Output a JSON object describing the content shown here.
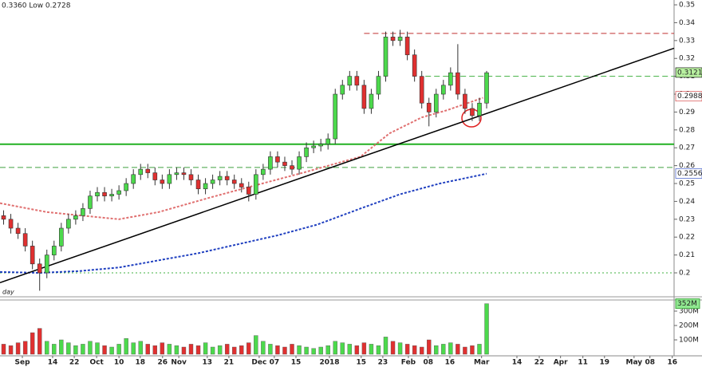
{
  "chart_data": {
    "type": "candlestick",
    "header": "0.3360 Low 0.2728",
    "period_label": "day",
    "x": [
      1,
      3,
      5,
      7,
      9,
      11,
      13,
      15,
      17,
      19,
      21,
      23,
      25,
      27,
      29,
      31,
      33,
      35,
      37,
      39,
      41,
      43,
      45,
      47,
      49,
      51,
      53,
      55,
      57,
      59,
      61,
      63,
      65,
      67,
      69,
      71,
      73,
      75,
      77,
      79,
      81,
      83,
      85,
      87,
      89,
      91,
      93,
      95,
      97,
      99,
      101,
      103,
      105,
      107,
      109,
      111,
      113,
      115,
      117,
      119,
      121,
      123,
      125,
      127,
      129,
      131,
      133,
      135
    ],
    "open": [
      0.232,
      0.23,
      0.225,
      0.222,
      0.215,
      0.205,
      0.2,
      0.21,
      0.215,
      0.225,
      0.23,
      0.232,
      0.236,
      0.243,
      0.245,
      0.243,
      0.244,
      0.246,
      0.25,
      0.255,
      0.258,
      0.256,
      0.252,
      0.25,
      0.255,
      0.256,
      0.255,
      0.252,
      0.247,
      0.25,
      0.252,
      0.254,
      0.252,
      0.25,
      0.248,
      0.244,
      0.255,
      0.258,
      0.265,
      0.262,
      0.26,
      0.258,
      0.265,
      0.27,
      0.271,
      0.272,
      0.275,
      0.3,
      0.305,
      0.31,
      0.305,
      0.292,
      0.3,
      0.31,
      0.332,
      0.33,
      0.332,
      0.322,
      0.31,
      0.295,
      0.29,
      0.3,
      0.305,
      0.312,
      0.3,
      0.292,
      0.288,
      0.295
    ],
    "high": [
      0.235,
      0.233,
      0.228,
      0.225,
      0.218,
      0.208,
      0.213,
      0.218,
      0.228,
      0.233,
      0.235,
      0.239,
      0.246,
      0.248,
      0.248,
      0.247,
      0.249,
      0.253,
      0.258,
      0.261,
      0.261,
      0.259,
      0.255,
      0.258,
      0.259,
      0.259,
      0.258,
      0.255,
      0.253,
      0.255,
      0.257,
      0.257,
      0.255,
      0.253,
      0.251,
      0.258,
      0.261,
      0.268,
      0.268,
      0.265,
      0.263,
      0.268,
      0.273,
      0.274,
      0.275,
      0.278,
      0.303,
      0.308,
      0.313,
      0.313,
      0.308,
      0.303,
      0.313,
      0.335,
      0.335,
      0.336,
      0.335,
      0.325,
      0.313,
      0.298,
      0.303,
      0.308,
      0.315,
      0.328,
      0.303,
      0.295,
      0.298,
      0.313
    ],
    "low": [
      0.227,
      0.222,
      0.219,
      0.212,
      0.202,
      0.19,
      0.197,
      0.207,
      0.212,
      0.222,
      0.227,
      0.229,
      0.233,
      0.24,
      0.24,
      0.24,
      0.241,
      0.243,
      0.247,
      0.252,
      0.253,
      0.249,
      0.247,
      0.247,
      0.252,
      0.252,
      0.249,
      0.244,
      0.244,
      0.247,
      0.249,
      0.249,
      0.247,
      0.245,
      0.24,
      0.241,
      0.252,
      0.255,
      0.259,
      0.257,
      0.255,
      0.255,
      0.262,
      0.267,
      0.268,
      0.269,
      0.272,
      0.297,
      0.302,
      0.302,
      0.289,
      0.289,
      0.297,
      0.307,
      0.327,
      0.327,
      0.319,
      0.307,
      0.292,
      0.282,
      0.287,
      0.297,
      0.302,
      0.297,
      0.289,
      0.285,
      0.285,
      0.292
    ],
    "close": [
      0.23,
      0.225,
      0.222,
      0.215,
      0.205,
      0.2,
      0.21,
      0.215,
      0.225,
      0.23,
      0.232,
      0.236,
      0.243,
      0.245,
      0.243,
      0.244,
      0.246,
      0.25,
      0.255,
      0.258,
      0.256,
      0.252,
      0.25,
      0.255,
      0.256,
      0.255,
      0.252,
      0.247,
      0.25,
      0.252,
      0.254,
      0.252,
      0.25,
      0.248,
      0.244,
      0.255,
      0.258,
      0.265,
      0.262,
      0.26,
      0.258,
      0.265,
      0.27,
      0.271,
      0.272,
      0.275,
      0.3,
      0.305,
      0.31,
      0.305,
      0.292,
      0.3,
      0.31,
      0.332,
      0.33,
      0.332,
      0.322,
      0.31,
      0.295,
      0.29,
      0.3,
      0.305,
      0.312,
      0.3,
      0.292,
      0.288,
      0.295,
      0.312
    ],
    "volume": [
      70000000.0,
      60000000.0,
      80000000.0,
      90000000.0,
      150000000.0,
      180000000.0,
      90000000.0,
      70000000.0,
      100000000.0,
      80000000.0,
      60000000.0,
      70000000.0,
      90000000.0,
      80000000.0,
      60000000.0,
      50000000.0,
      70000000.0,
      110000000.0,
      80000000.0,
      90000000.0,
      70000000.0,
      60000000.0,
      80000000.0,
      70000000.0,
      60000000.0,
      50000000.0,
      70000000.0,
      60000000.0,
      80000000.0,
      50000000.0,
      60000000.0,
      70000000.0,
      50000000.0,
      60000000.0,
      80000000.0,
      130000000.0,
      90000000.0,
      70000000.0,
      60000000.0,
      50000000.0,
      70000000.0,
      60000000.0,
      50000000.0,
      40000000.0,
      50000000.0,
      60000000.0,
      90000000.0,
      80000000.0,
      70000000.0,
      60000000.0,
      80000000.0,
      70000000.0,
      60000000.0,
      120000000.0,
      90000000.0,
      80000000.0,
      70000000.0,
      60000000.0,
      50000000.0,
      100000000.0,
      60000000.0,
      70000000.0,
      80000000.0,
      70000000.0,
      50000000.0,
      60000000.0,
      70000000.0,
      352000000.0
    ],
    "up_color": "#4cd94c",
    "down_color": "#e03030",
    "xlim": [
      0,
      187
    ],
    "xticks": [
      {
        "value": 6.2,
        "label": "Sep"
      },
      {
        "value": 14.6,
        "label": "14"
      },
      {
        "value": 20.6,
        "label": "22"
      },
      {
        "value": 26.8,
        "label": "Oct"
      },
      {
        "value": 33,
        "label": "10"
      },
      {
        "value": 38.9,
        "label": "18"
      },
      {
        "value": 45.1,
        "label": "26"
      },
      {
        "value": 49.6,
        "label": "Nov"
      },
      {
        "value": 57.5,
        "label": "13"
      },
      {
        "value": 63.5,
        "label": "21"
      },
      {
        "value": 71.9,
        "label": "Dec"
      },
      {
        "value": 76.1,
        "label": "07"
      },
      {
        "value": 82.1,
        "label": "15"
      },
      {
        "value": 91.4,
        "label": "2018"
      },
      {
        "value": 100.2,
        "label": "15"
      },
      {
        "value": 106.2,
        "label": "23"
      },
      {
        "value": 113.3,
        "label": "Feb"
      },
      {
        "value": 118.8,
        "label": "08"
      },
      {
        "value": 124.8,
        "label": "16"
      },
      {
        "value": 133.6,
        "label": "Mar"
      },
      {
        "value": 143.4,
        "label": "14"
      },
      {
        "value": 149.6,
        "label": "22"
      },
      {
        "value": 155.5,
        "label": "Apr"
      },
      {
        "value": 161.7,
        "label": "11"
      },
      {
        "value": 167.7,
        "label": "19"
      },
      {
        "value": 175.9,
        "label": "May"
      },
      {
        "value": 180.3,
        "label": "08"
      },
      {
        "value": 186.5,
        "label": "16"
      }
    ],
    "ylim": [
      0.1875,
      0.3527
    ],
    "yticks": [
      0.2,
      0.21,
      0.22,
      0.23,
      0.24,
      0.25,
      0.26,
      0.27,
      0.28,
      0.29,
      0.3,
      0.31,
      0.32,
      0.33,
      0.34,
      0.35
    ],
    "volume_ylim": [
      0,
      372000000.0
    ],
    "volume_yticks": [
      {
        "value": 100000000.0,
        "label": "100M"
      },
      {
        "value": 200000000.0,
        "label": "200M"
      },
      {
        "value": 300000000.0,
        "label": "300M"
      }
    ],
    "moving_averages": [
      {
        "color": "#e07070",
        "x": [
          0,
          13,
          33,
          44,
          58,
          69,
          84,
          100,
          108,
          117,
          124,
          134
        ],
        "values": [
          0.239,
          0.234,
          0.23,
          0.234,
          0.242,
          0.248,
          0.256,
          0.265,
          0.278,
          0.287,
          0.291,
          0.298
        ]
      },
      {
        "color": "#2040c0",
        "x": [
          0,
          11,
          22,
          33,
          44,
          55,
          66,
          77,
          88,
          100,
          111,
          122,
          135
        ],
        "values": [
          0.2005,
          0.2,
          0.201,
          0.203,
          0.207,
          0.211,
          0.216,
          0.221,
          0.227,
          0.236,
          0.244,
          0.25,
          0.2555
        ]
      }
    ],
    "levels": [
      {
        "value": 0.334,
        "color": "#c03030",
        "style": "dashed",
        "x_start": 101
      },
      {
        "value": 0.31,
        "color": "#40b040",
        "style": "dashed",
        "x_start": 118
      },
      {
        "value": 0.272,
        "color": "#22b022",
        "style": "solid",
        "x_start": 0
      },
      {
        "value": 0.259,
        "color": "#40a040",
        "style": "dashed",
        "x_start": 0
      },
      {
        "value": 0.2,
        "color": "#40b040",
        "style": "dotted",
        "x_start": 0
      }
    ],
    "trendline": {
      "color": "#000000",
      "x": [
        0,
        187
      ],
      "values": [
        0.1945,
        0.3257
      ]
    },
    "price_labels": [
      {
        "value": 0.3121,
        "color": "#000000",
        "background": "#b8f0a0"
      },
      {
        "value": 0.2988,
        "color": "#d03030",
        "background": "#ffffff"
      },
      {
        "value": 0.2556,
        "color": "#2040c0",
        "background": "#ffffff"
      }
    ],
    "volume_label": {
      "value": 352000000.0,
      "label": "352M",
      "color": "#000000",
      "background": "#90e890"
    }
  }
}
